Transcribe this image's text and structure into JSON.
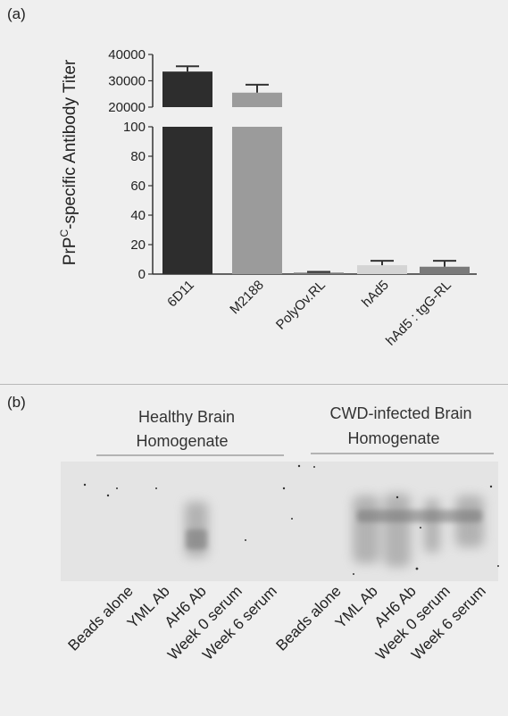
{
  "panel_a": {
    "label": "(a)"
  },
  "panel_b": {
    "label": "(b)",
    "group_headers": [
      {
        "line1": "Healthy Brain",
        "line2": "Homogenate"
      },
      {
        "line1": "CWD-infected Brain",
        "line2": "Homogenate"
      }
    ],
    "lane_labels": [
      "Beads alone",
      "YML Ab",
      "AH6 Ab",
      "Week 0 serum",
      "Week 6 serum",
      "Beads alone",
      "YML Ab",
      "AH6 Ab",
      "Week 0 serum",
      "Week 6 serum"
    ]
  },
  "chart_data": {
    "type": "bar",
    "ylabel_prefix": "PrP",
    "ylabel_superscript": "C",
    "ylabel_suffix": "-specific Antibody Titer",
    "categories": [
      "6D11",
      "M2188",
      "PolyOv.RL",
      "hAd5",
      "hAd5 : tgG-RL"
    ],
    "values": [
      33500,
      25500,
      1,
      6,
      5
    ],
    "errors": [
      2000,
      3000,
      0.5,
      3,
      4
    ],
    "bar_colors": [
      "#2d2d2d",
      "#9b9b9b",
      "#7a7a7a",
      "#d4d4d4",
      "#7a7a7a"
    ],
    "y_axis_lower": {
      "range": [
        0,
        100
      ],
      "ticks": [
        "0",
        "20",
        "40",
        "60",
        "80",
        "100"
      ]
    },
    "y_axis_upper": {
      "range": [
        20000,
        40000
      ],
      "ticks": [
        "20000",
        "30000",
        "40000"
      ]
    },
    "broken_axis": true,
    "grid": false
  }
}
